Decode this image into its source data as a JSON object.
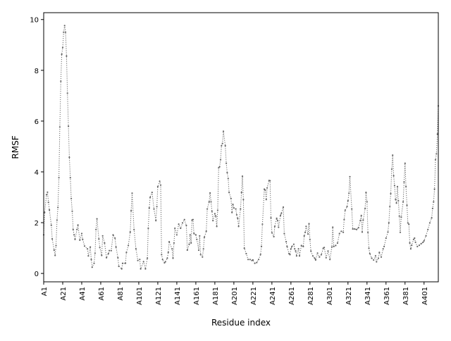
{
  "chart_data": {
    "type": "line",
    "title": "",
    "xlabel": "Residue index",
    "ylabel": "RMSF",
    "xlim": [
      1,
      416
    ],
    "ylim": [
      -0.33,
      10.27
    ],
    "grid": false,
    "legend": "none",
    "line_style": "dotted with point markers",
    "color": "#666666",
    "x_ticks": [
      1,
      21,
      41,
      61,
      81,
      101,
      121,
      141,
      161,
      181,
      201,
      221,
      241,
      261,
      281,
      301,
      321,
      341,
      361,
      381,
      401
    ],
    "x_tick_labels": [
      "A1",
      "A21",
      "A41",
      "A61",
      "A81",
      "A101",
      "A121",
      "A141",
      "A161",
      "A181",
      "A201",
      "A221",
      "A241",
      "A261",
      "A281",
      "A301",
      "A321",
      "A341",
      "A361",
      "A381",
      "A401"
    ],
    "y_ticks": [
      0,
      2,
      4,
      6,
      8,
      10
    ],
    "y_tick_labels": [
      "0",
      "2",
      "4",
      "6",
      "8",
      "10"
    ],
    "x": [
      1,
      2,
      4,
      5,
      6,
      7,
      9,
      10,
      12,
      13,
      14,
      15,
      16,
      17,
      18,
      19,
      20,
      21,
      22,
      23,
      24,
      25,
      26,
      27,
      28,
      29,
      30,
      31,
      32,
      33,
      34,
      36,
      37,
      39,
      41,
      42,
      44,
      47,
      48,
      50,
      51,
      52,
      54,
      55,
      56,
      57,
      59,
      60,
      62,
      63,
      65,
      67,
      69,
      70,
      72,
      74,
      76,
      77,
      79,
      80,
      83,
      84,
      87,
      88,
      90,
      92,
      93,
      94,
      96,
      98,
      100,
      102,
      103,
      106,
      108,
      110,
      111,
      112,
      113,
      115,
      117,
      119,
      120,
      121,
      123,
      124,
      125,
      126,
      128,
      129,
      131,
      132,
      133,
      136,
      137,
      138,
      139,
      141,
      143,
      145,
      147,
      149,
      151,
      152,
      154,
      155,
      156,
      157,
      158,
      159,
      161,
      162,
      164,
      165,
      166,
      168,
      169,
      170,
      172,
      173,
      175,
      176,
      177,
      178,
      179,
      181,
      182,
      183,
      184,
      185,
      186,
      187,
      188,
      189,
      190,
      192,
      193,
      194,
      195,
      196,
      198,
      199,
      200,
      201,
      203,
      204,
      205,
      206,
      208,
      209,
      210,
      211,
      212,
      214,
      216,
      218,
      220,
      221,
      223,
      225,
      227,
      229,
      230,
      231,
      233,
      234,
      235,
      236,
      238,
      239,
      240,
      241,
      243,
      244,
      246,
      247,
      248,
      250,
      251,
      253,
      254,
      256,
      257,
      259,
      260,
      261,
      262,
      264,
      265,
      266,
      267,
      269,
      270,
      272,
      274,
      275,
      276,
      277,
      279,
      280,
      281,
      282,
      284,
      286,
      287,
      289,
      291,
      293,
      295,
      296,
      298,
      300,
      302,
      304,
      305,
      306,
      308,
      310,
      312,
      314,
      316,
      317,
      318,
      320,
      321,
      322,
      323,
      325,
      326,
      328,
      330,
      332,
      334,
      335,
      336,
      337,
      339,
      340,
      341,
      342,
      343,
      344,
      346,
      348,
      350,
      351,
      353,
      354,
      356,
      358,
      359,
      361,
      363,
      364,
      365,
      366,
      367,
      368,
      369,
      370,
      371,
      372,
      373,
      374,
      375,
      376,
      377,
      379,
      380,
      381,
      382,
      383,
      384,
      385,
      386,
      387,
      388,
      390,
      391,
      392,
      394,
      396,
      398,
      400,
      401,
      403,
      405,
      407,
      409,
      410,
      411,
      412,
      413,
      414,
      415,
      416
    ],
    "y": [
      1.52,
      2.4,
      3.1,
      3.2,
      2.8,
      2.5,
      1.9,
      1.36,
      0.92,
      0.71,
      1.1,
      2.1,
      2.6,
      3.77,
      5.77,
      7.57,
      8.63,
      8.9,
      9.5,
      9.76,
      9.5,
      8.56,
      7.1,
      5.8,
      4.57,
      3.77,
      2.95,
      2.45,
      1.73,
      1.52,
      1.34,
      1.73,
      1.91,
      1.31,
      1.57,
      1.34,
      1.08,
      0.97,
      0.69,
      1.04,
      0.55,
      0.25,
      0.4,
      0.8,
      1.73,
      2.15,
      1.36,
      1.02,
      0.71,
      1.48,
      1.2,
      0.62,
      0.78,
      0.9,
      0.9,
      1.52,
      1.39,
      1.04,
      0.62,
      0.28,
      0.18,
      0.4,
      0.4,
      0.83,
      1.1,
      1.63,
      2.47,
      3.16,
      1.73,
      0.97,
      0.51,
      0.55,
      0.18,
      0.46,
      0.18,
      0.6,
      1.78,
      2.58,
      3.0,
      3.19,
      2.54,
      2.08,
      2.63,
      3.42,
      3.63,
      3.48,
      0.74,
      0.55,
      0.42,
      0.46,
      0.6,
      0.83,
      1.25,
      0.97,
      0.6,
      1.2,
      1.78,
      1.52,
      1.94,
      1.78,
      1.99,
      2.12,
      1.89,
      0.92,
      1.15,
      1.52,
      1.2,
      2.1,
      2.12,
      1.57,
      1.52,
      1.34,
      0.92,
      1.48,
      0.74,
      0.65,
      0.97,
      1.43,
      1.66,
      2.54,
      2.82,
      3.17,
      2.82,
      2.45,
      2.08,
      2.35,
      2.26,
      1.85,
      2.49,
      4.16,
      4.2,
      4.48,
      5.03,
      5.12,
      5.6,
      5.03,
      4.34,
      3.97,
      3.74,
      3.19,
      2.95,
      2.4,
      2.72,
      2.58,
      2.54,
      2.31,
      2.17,
      1.85,
      2.54,
      3.19,
      3.83,
      2.91,
      0.99,
      0.78,
      0.55,
      0.55,
      0.51,
      0.53,
      0.4,
      0.43,
      0.55,
      0.74,
      1.06,
      1.94,
      3.32,
      3.28,
      2.91,
      3.37,
      3.66,
      3.65,
      2.19,
      1.6,
      1.45,
      1.85,
      2.17,
      2.08,
      1.82,
      2.28,
      2.37,
      2.61,
      1.57,
      1.25,
      1.06,
      0.78,
      0.74,
      0.97,
      1.06,
      1.15,
      0.97,
      0.88,
      0.69,
      0.97,
      0.69,
      1.1,
      1.06,
      1.48,
      1.62,
      1.85,
      1.55,
      1.96,
      1.34,
      0.88,
      0.69,
      0.6,
      0.53,
      0.8,
      0.65,
      0.74,
      0.99,
      1.02,
      0.62,
      0.88,
      0.55,
      1.04,
      1.82,
      1.06,
      1.1,
      1.2,
      1.57,
      1.66,
      1.62,
      2.12,
      2.49,
      2.63,
      2.86,
      3.16,
      3.81,
      2.54,
      1.75,
      1.75,
      1.73,
      1.8,
      2.08,
      2.28,
      1.63,
      2.1,
      2.56,
      3.19,
      2.82,
      1.62,
      0.99,
      0.78,
      0.6,
      0.53,
      0.69,
      0.46,
      0.6,
      0.83,
      0.65,
      0.97,
      1.06,
      1.39,
      1.63,
      1.99,
      2.63,
      3.14,
      4.11,
      4.66,
      3.85,
      3.46,
      2.91,
      2.77,
      3.42,
      2.86,
      2.26,
      1.62,
      2.22,
      2.82,
      3.6,
      4.34,
      3.42,
      2.68,
      1.99,
      1.94,
      1.2,
      0.97,
      1.11,
      1.34,
      1.39,
      1.23,
      1.06,
      1.11,
      1.17,
      1.23,
      1.29,
      1.48,
      1.73,
      1.99,
      2.19,
      2.56,
      2.82,
      3.32,
      4.48,
      4.71,
      5.49,
      6.6
    ]
  }
}
